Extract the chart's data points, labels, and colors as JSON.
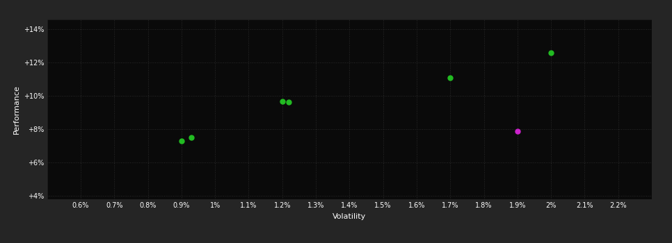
{
  "background_color": "#252525",
  "plot_bg_color": "#0a0a0a",
  "grid_color": "#2a2a2a",
  "text_color": "#ffffff",
  "xlabel": "Volatility",
  "ylabel": "Performance",
  "xlim": [
    0.005,
    0.023
  ],
  "ylim": [
    0.038,
    0.146
  ],
  "xticks": [
    0.006,
    0.007,
    0.008,
    0.009,
    0.01,
    0.011,
    0.012,
    0.013,
    0.014,
    0.015,
    0.016,
    0.017,
    0.018,
    0.019,
    0.02,
    0.021,
    0.022
  ],
  "yticks": [
    0.04,
    0.06,
    0.08,
    0.1,
    0.12,
    0.14
  ],
  "xtick_labels": [
    "0.6%",
    "0.7%",
    "0.8%",
    "0.9%",
    "1%",
    "1.1%",
    "1.2%",
    "1.3%",
    "1.4%",
    "1.5%",
    "1.6%",
    "1.7%",
    "1.8%",
    "1.9%",
    "2%",
    "2.1%",
    "2.2%"
  ],
  "ytick_labels": [
    "+4%",
    "+6%",
    "+8%",
    "+10%",
    "+12%",
    "+14%"
  ],
  "green_points": [
    [
      0.009,
      0.073
    ],
    [
      0.0093,
      0.075
    ],
    [
      0.012,
      0.097
    ],
    [
      0.0122,
      0.0963
    ],
    [
      0.017,
      0.111
    ],
    [
      0.02,
      0.126
    ]
  ],
  "magenta_points": [
    [
      0.019,
      0.079
    ]
  ],
  "green_color": "#22bb22",
  "magenta_color": "#cc22cc",
  "marker_size": 25,
  "font_size_ticks": 7,
  "font_size_label": 8
}
